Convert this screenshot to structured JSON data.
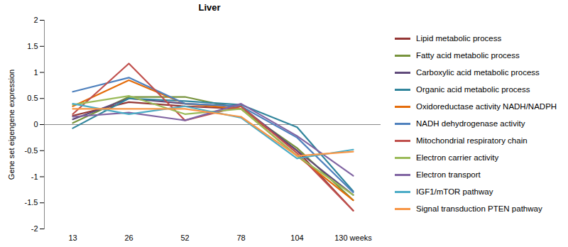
{
  "chart_data": {
    "type": "line",
    "title": "Liver",
    "y_label": "Gene set eigengene expression",
    "categories": [
      "13",
      "26",
      "52",
      "78",
      "104",
      "130 weeks"
    ],
    "ylim": [
      -2,
      2
    ],
    "yticks": [
      -2,
      -1.5,
      -1,
      -0.5,
      0,
      0.5,
      1,
      1.5,
      2
    ],
    "grid": false,
    "legend": "right",
    "series": [
      {
        "name": "Lipid metabolic process",
        "color": "#943634",
        "values": [
          0.17,
          0.43,
          0.35,
          0.3,
          -0.5,
          -1.65
        ]
      },
      {
        "name": "Fatty acid metabolic process",
        "color": "#77933c",
        "values": [
          0.03,
          0.53,
          0.53,
          0.3,
          -0.45,
          -1.45
        ]
      },
      {
        "name": "Carboxylic acid metabolic process",
        "color": "#604a7b",
        "values": [
          0.1,
          0.5,
          0.4,
          0.35,
          -0.5,
          -1.35
        ]
      },
      {
        "name": "Organic acid metabolic process",
        "color": "#31859c",
        "values": [
          -0.07,
          0.5,
          0.45,
          0.38,
          -0.05,
          -1.28
        ]
      },
      {
        "name": "Oxidoreductase activity NADH/NADPH",
        "color": "#e46c0a",
        "values": [
          0.35,
          0.85,
          0.4,
          0.3,
          -0.6,
          -1.45
        ]
      },
      {
        "name": "NADH dehydrogenase activity",
        "color": "#4f81bd",
        "values": [
          0.63,
          0.9,
          0.4,
          0.35,
          -0.25,
          -1.3
        ]
      },
      {
        "name": "Mitochondrial respiratory chain",
        "color": "#c0504d",
        "values": [
          0.2,
          1.17,
          0.08,
          0.35,
          -0.55,
          -1.65
        ]
      },
      {
        "name": "Electron carrier activity",
        "color": "#9bbb59",
        "values": [
          0.38,
          0.55,
          0.2,
          0.3,
          -0.6,
          -1.35
        ]
      },
      {
        "name": "Electron transport",
        "color": "#8064a2",
        "values": [
          0.15,
          0.23,
          0.08,
          0.4,
          -0.22,
          -0.98
        ]
      },
      {
        "name": "IGF1/mTOR pathway",
        "color": "#4bacc6",
        "values": [
          0.4,
          0.2,
          0.35,
          0.13,
          -0.65,
          -0.48
        ]
      },
      {
        "name": "Signal transduction PTEN pathway",
        "color": "#f79646",
        "values": [
          0.3,
          0.3,
          0.3,
          0.15,
          -0.6,
          -0.52
        ]
      }
    ]
  }
}
